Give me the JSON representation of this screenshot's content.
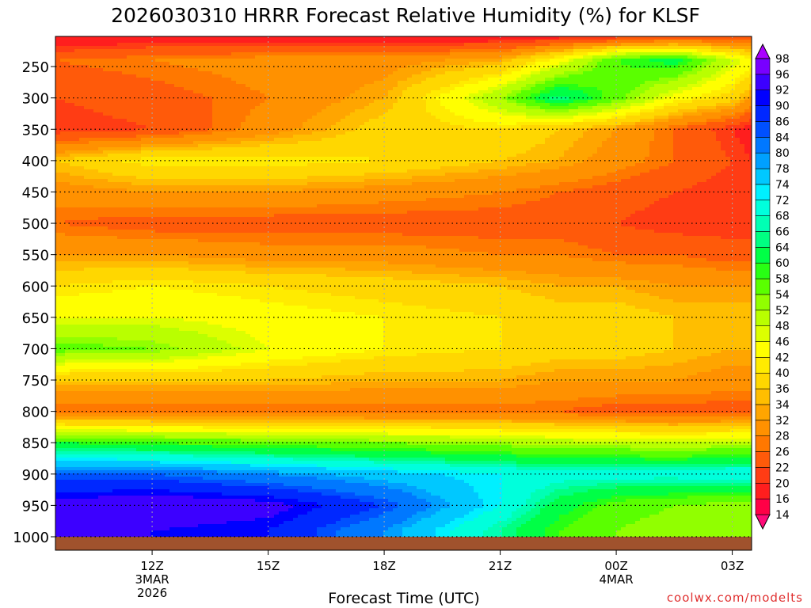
{
  "chart_data": {
    "type": "heatmap",
    "title": "2026030310 HRRR Forecast Relative Humidity (%) for KLSF",
    "xlabel": "Forecast Time (UTC)",
    "ylabel": "",
    "credit": "coolwx.com/modelts",
    "x_range_hours": [
      -2.5,
      15.5
    ],
    "y_range_hpa": [
      1000,
      200
    ],
    "x_ticks": [
      {
        "hour": 0,
        "label": "12Z",
        "sub1": "3MAR",
        "sub2": "2026"
      },
      {
        "hour": 3,
        "label": "15Z",
        "sub1": "",
        "sub2": ""
      },
      {
        "hour": 6,
        "label": "18Z",
        "sub1": "",
        "sub2": ""
      },
      {
        "hour": 9,
        "label": "21Z",
        "sub1": "",
        "sub2": ""
      },
      {
        "hour": 12,
        "label": "00Z",
        "sub1": "4MAR",
        "sub2": ""
      },
      {
        "hour": 15,
        "label": "03Z",
        "sub1": "",
        "sub2": ""
      }
    ],
    "y_ticks": [
      {
        "p": 250,
        "label": "250"
      },
      {
        "p": 300,
        "label": "300"
      },
      {
        "p": 350,
        "label": "350"
      },
      {
        "p": 400,
        "label": "400"
      },
      {
        "p": 450,
        "label": "450"
      },
      {
        "p": 500,
        "label": "500"
      },
      {
        "p": 550,
        "label": "550"
      },
      {
        "p": 600,
        "label": "600"
      },
      {
        "p": 650,
        "label": "650"
      },
      {
        "p": 700,
        "label": "700"
      },
      {
        "p": 750,
        "label": "750"
      },
      {
        "p": 800,
        "label": "800"
      },
      {
        "p": 850,
        "label": "850"
      },
      {
        "p": 900,
        "label": "900"
      },
      {
        "p": 950,
        "label": "950"
      },
      {
        "p": 1000,
        "label": "1000"
      }
    ],
    "colorbar": {
      "levels": [
        "14",
        "16",
        "20",
        "22",
        "26",
        "28",
        "32",
        "34",
        "36",
        "40",
        "42",
        "46",
        "48",
        "52",
        "54",
        "58",
        "60",
        "64",
        "66",
        "68",
        "72",
        "74",
        "78",
        "80",
        "84",
        "86",
        "90",
        "92",
        "96",
        "98"
      ],
      "colors": [
        "#ff0a78",
        "#ff0046",
        "#ff1e1e",
        "#ff3c14",
        "#ff5a0a",
        "#ff7800",
        "#ff9100",
        "#ffa500",
        "#ffbe00",
        "#ffd700",
        "#ffeb00",
        "#ffff00",
        "#dcff00",
        "#b9ff00",
        "#91ff00",
        "#5aff00",
        "#28ff14",
        "#00ff46",
        "#00ff82",
        "#00ffb4",
        "#00ffdc",
        "#00f0ff",
        "#00c8ff",
        "#00a0ff",
        "#0078ff",
        "#0050ff",
        "#0028ff",
        "#0000ff",
        "#3c00ff",
        "#7800ff",
        "#aa00ff"
      ]
    },
    "field_columns_hours": [
      -2.5,
      0,
      3,
      6,
      9,
      10.5,
      12,
      13.5,
      15,
      15.5
    ],
    "field_rows_hpa": [
      205,
      240,
      300,
      350,
      400,
      450,
      500,
      550,
      600,
      650,
      700,
      750,
      800,
      850,
      900,
      950,
      990
    ],
    "rh_values": [
      [
        16,
        18,
        18,
        18,
        18,
        20,
        22,
        24,
        24,
        24
      ],
      [
        26,
        28,
        30,
        30,
        34,
        44,
        58,
        62,
        48,
        44
      ],
      [
        22,
        24,
        28,
        34,
        52,
        66,
        56,
        44,
        38,
        32
      ],
      [
        20,
        22,
        30,
        38,
        40,
        36,
        32,
        26,
        20,
        18
      ],
      [
        36,
        42,
        42,
        40,
        36,
        34,
        30,
        26,
        22,
        20
      ],
      [
        30,
        32,
        32,
        30,
        28,
        26,
        24,
        22,
        20,
        20
      ],
      [
        26,
        24,
        24,
        24,
        24,
        24,
        22,
        20,
        20,
        20
      ],
      [
        32,
        32,
        30,
        30,
        28,
        28,
        26,
        26,
        24,
        24
      ],
      [
        40,
        42,
        40,
        38,
        36,
        34,
        34,
        32,
        32,
        32
      ],
      [
        46,
        46,
        44,
        42,
        40,
        38,
        38,
        36,
        36,
        36
      ],
      [
        56,
        54,
        46,
        42,
        40,
        38,
        38,
        36,
        34,
        34
      ],
      [
        36,
        36,
        36,
        34,
        34,
        32,
        32,
        32,
        30,
        30
      ],
      [
        26,
        26,
        26,
        26,
        26,
        26,
        24,
        24,
        24,
        24
      ],
      [
        60,
        58,
        56,
        54,
        52,
        50,
        50,
        48,
        50,
        50
      ],
      [
        84,
        84,
        80,
        76,
        72,
        70,
        70,
        70,
        72,
        72
      ],
      [
        94,
        96,
        94,
        86,
        72,
        62,
        56,
        54,
        52,
        52
      ],
      [
        92,
        92,
        90,
        80,
        66,
        58,
        54,
        52,
        52,
        52
      ]
    ]
  }
}
